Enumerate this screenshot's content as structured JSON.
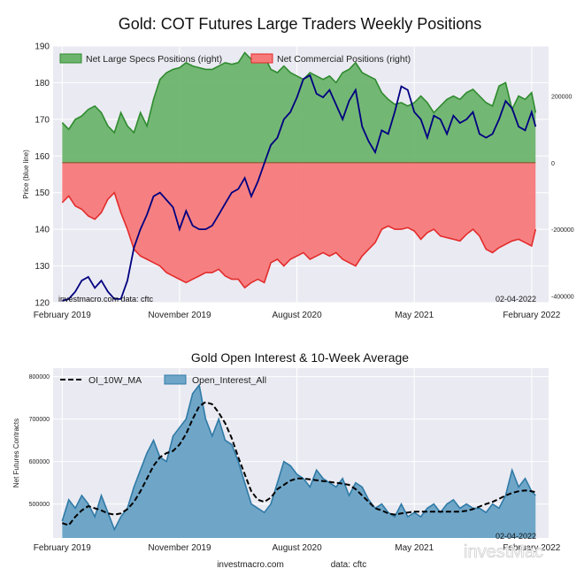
{
  "colors": {
    "panel_bg": "#eaeaf2",
    "grid": "#ffffff",
    "specs_fill": "#6db46d",
    "specs_line": "#2e8b2e",
    "commercial_fill": "#f77a7a",
    "commercial_line": "#e32b2b",
    "price_line": "#000080",
    "oi_fill": "#6fa6c8",
    "oi_line": "#2f7aa6",
    "ma_line": "#000000"
  },
  "chart_data": [
    {
      "type": "area",
      "title": "Gold: COT Futures Large Traders Weekly Positions",
      "ylabel": "Price (blue line)",
      "ylim": [
        120,
        190
      ],
      "y_ticks": [
        120,
        130,
        140,
        150,
        160,
        170,
        180,
        190
      ],
      "y2lim": [
        -420000,
        350000
      ],
      "y2_ticks": [
        200000,
        0,
        -200000,
        -400000
      ],
      "x_ticks": [
        "February 2019",
        "November 2019",
        "August 2020",
        "May 2021",
        "February 2022"
      ],
      "x_tick_pos": [
        0,
        9,
        18,
        27,
        36
      ],
      "xlim": [
        -0.7,
        37.3
      ],
      "watermark": "investmacro.com   data: cftc",
      "date_stamp": "02-04-2022",
      "legend": [
        "Net Large Specs Positions (right)",
        "Net Commercial Positions (right)"
      ],
      "x": [
        0,
        0.5,
        1,
        1.5,
        2,
        2.5,
        3,
        3.5,
        4,
        4.5,
        5,
        5.5,
        6,
        6.5,
        7,
        7.5,
        8,
        8.5,
        9,
        9.5,
        10,
        10.5,
        11,
        11.5,
        12,
        12.5,
        13,
        13.5,
        14,
        14.5,
        15,
        15.5,
        16,
        16.5,
        17,
        17.5,
        18,
        18.5,
        19,
        19.5,
        20,
        20.5,
        21,
        21.5,
        22,
        22.5,
        23,
        23.5,
        24,
        24.5,
        25,
        25.5,
        26,
        26.5,
        27,
        27.5,
        28,
        28.5,
        29,
        29.5,
        30,
        30.5,
        31,
        31.5,
        32,
        32.5,
        33,
        33.5,
        34,
        34.5,
        35,
        35.5,
        36,
        36.3
      ],
      "series": [
        {
          "name": "Net Large Specs Positions (right)",
          "axis": "right",
          "values": [
            120000,
            100000,
            130000,
            140000,
            160000,
            170000,
            150000,
            110000,
            90000,
            150000,
            110000,
            90000,
            150000,
            110000,
            190000,
            250000,
            270000,
            280000,
            285000,
            300000,
            290000,
            285000,
            280000,
            280000,
            290000,
            300000,
            295000,
            300000,
            330000,
            310000,
            300000,
            320000,
            280000,
            270000,
            290000,
            270000,
            260000,
            250000,
            270000,
            260000,
            250000,
            260000,
            240000,
            270000,
            280000,
            300000,
            270000,
            260000,
            250000,
            210000,
            190000,
            175000,
            180000,
            170000,
            180000,
            200000,
            180000,
            150000,
            170000,
            190000,
            200000,
            190000,
            210000,
            220000,
            200000,
            180000,
            170000,
            230000,
            240000,
            160000,
            200000,
            190000,
            210000,
            150000
          ]
        },
        {
          "name": "Net Commercial Positions (right)",
          "axis": "right",
          "values": [
            -120000,
            -100000,
            -130000,
            -140000,
            -160000,
            -170000,
            -150000,
            -110000,
            -90000,
            -150000,
            -200000,
            -260000,
            -280000,
            -290000,
            -300000,
            -310000,
            -330000,
            -340000,
            -350000,
            -360000,
            -350000,
            -340000,
            -330000,
            -330000,
            -320000,
            -340000,
            -350000,
            -350000,
            -375000,
            -360000,
            -350000,
            -360000,
            -300000,
            -290000,
            -310000,
            -290000,
            -280000,
            -270000,
            -290000,
            -280000,
            -270000,
            -280000,
            -270000,
            -290000,
            -300000,
            -310000,
            -280000,
            -260000,
            -240000,
            -200000,
            -190000,
            -200000,
            -200000,
            -195000,
            -205000,
            -230000,
            -210000,
            -200000,
            -220000,
            -225000,
            -230000,
            -235000,
            -215000,
            -200000,
            -220000,
            -260000,
            -270000,
            -255000,
            -245000,
            -235000,
            -230000,
            -240000,
            -250000,
            -200000
          ]
        },
        {
          "name": "Price",
          "axis": "left",
          "values": [
            120.5,
            121,
            123,
            126,
            127,
            124,
            126,
            123,
            121,
            121,
            126,
            135,
            140,
            144,
            149,
            150,
            148,
            146,
            140,
            145,
            141,
            140,
            140,
            141,
            144,
            147,
            150,
            151,
            154,
            149,
            153,
            158,
            163,
            165,
            170,
            172,
            176,
            181,
            182,
            177,
            176,
            178,
            174,
            170,
            175,
            178,
            168,
            164,
            161,
            167,
            166,
            172,
            179,
            178,
            172,
            170,
            165,
            171,
            170,
            166,
            171,
            169,
            170,
            172,
            166,
            165,
            166,
            170,
            175,
            173,
            168,
            167,
            172,
            168
          ]
        }
      ]
    },
    {
      "type": "area",
      "title": "Gold Open Interest & 10-Week Average",
      "ylabel": "Net Futures Contracts",
      "ylim": [
        420000,
        820000
      ],
      "y_ticks": [
        500000,
        600000,
        700000,
        800000
      ],
      "x_ticks": [
        "February 2019",
        "November 2019",
        "August 2020",
        "May 2021",
        "February 2022"
      ],
      "x_tick_pos": [
        0,
        9,
        18,
        27,
        36
      ],
      "xlim": [
        -0.7,
        37.3
      ],
      "date_stamp": "02-04-2022",
      "legend": [
        "OI_10W_MA",
        "Open_Interest_All"
      ],
      "x": [
        0,
        0.5,
        1,
        1.5,
        2,
        2.5,
        3,
        3.5,
        4,
        4.5,
        5,
        5.5,
        6,
        6.5,
        7,
        7.5,
        8,
        8.5,
        9,
        9.5,
        10,
        10.5,
        11,
        11.5,
        12,
        12.5,
        13,
        13.5,
        14,
        14.5,
        15,
        15.5,
        16,
        16.5,
        17,
        17.5,
        18,
        18.5,
        19,
        19.5,
        20,
        20.5,
        21,
        21.5,
        22,
        22.5,
        23,
        23.5,
        24,
        24.5,
        25,
        25.5,
        26,
        26.5,
        27,
        27.5,
        28,
        28.5,
        29,
        29.5,
        30,
        30.5,
        31,
        31.5,
        32,
        32.5,
        33,
        33.5,
        34,
        34.5,
        35,
        35.5,
        36,
        36.3
      ],
      "series": [
        {
          "name": "Open_Interest_All",
          "values": [
            460000,
            510000,
            490000,
            520000,
            500000,
            470000,
            520000,
            480000,
            440000,
            470000,
            490000,
            540000,
            580000,
            620000,
            650000,
            610000,
            600000,
            660000,
            680000,
            700000,
            760000,
            780000,
            700000,
            660000,
            700000,
            650000,
            640000,
            600000,
            550000,
            500000,
            490000,
            480000,
            500000,
            550000,
            600000,
            590000,
            570000,
            560000,
            540000,
            580000,
            560000,
            550000,
            540000,
            560000,
            520000,
            550000,
            540000,
            510000,
            490000,
            500000,
            480000,
            470000,
            500000,
            470000,
            480000,
            470000,
            490000,
            500000,
            480000,
            500000,
            510000,
            490000,
            500000,
            490000,
            490000,
            480000,
            500000,
            490000,
            520000,
            580000,
            540000,
            560000,
            530000,
            520000
          ]
        },
        {
          "name": "OI_10W_MA",
          "values": [
            455000,
            450000,
            470000,
            485000,
            495000,
            490000,
            485000,
            478000,
            475000,
            478000,
            488000,
            505000,
            530000,
            560000,
            590000,
            610000,
            620000,
            625000,
            640000,
            665000,
            700000,
            730000,
            740000,
            735000,
            715000,
            690000,
            655000,
            610000,
            570000,
            530000,
            510000,
            505000,
            515000,
            535000,
            545000,
            555000,
            560000,
            560000,
            558000,
            556000,
            554000,
            552000,
            550000,
            548000,
            545000,
            535000,
            520000,
            505000,
            490000,
            485000,
            478000,
            475000,
            478000,
            480000,
            482000,
            482000,
            482000,
            482000,
            482000,
            482000,
            482000,
            482000,
            484000,
            488000,
            494000,
            500000,
            505000,
            512000,
            520000,
            526000,
            530000,
            532000,
            530000,
            528000
          ]
        }
      ]
    }
  ],
  "footer": {
    "left": "investmacro.com",
    "right": "data: cftc",
    "brand": "investMac"
  }
}
